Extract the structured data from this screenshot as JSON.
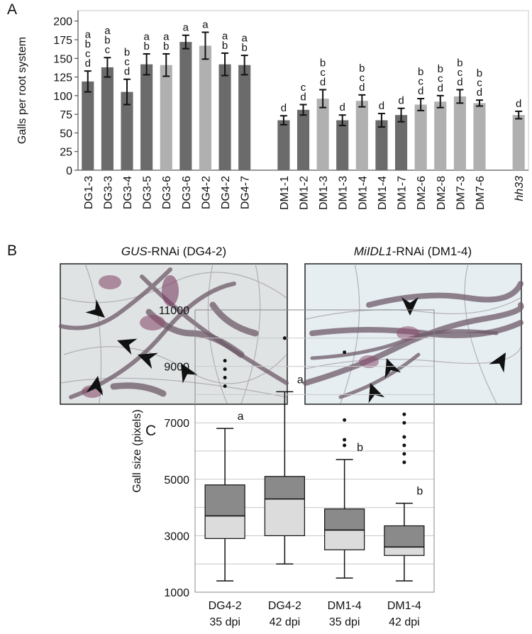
{
  "panel_labels": [
    "A",
    "B",
    "C"
  ],
  "chart_data": [
    {
      "type": "bar",
      "ylabel": "Galls per root system",
      "ylim": [
        0,
        214
      ],
      "yticks": [
        0,
        25,
        50,
        75,
        100,
        125,
        150,
        175,
        200
      ],
      "categories": [
        "DG1-3",
        "DG3-3",
        "DG3-4",
        "DG3-5",
        "DG3-6",
        "DG3-6",
        "DG4-2",
        "DG4-2",
        "DG4-7",
        null,
        "DM1-1",
        "DM1-2",
        "DM1-3",
        "DM1-3",
        "DM1-4",
        "DM1-4",
        "DM1-7",
        "DM2-6",
        "DM2-8",
        "DM7-3",
        "DM7-6",
        null,
        "hh33"
      ],
      "italic_index": 22,
      "values": [
        119,
        138,
        105,
        142,
        141,
        172,
        167,
        142,
        141,
        null,
        67,
        81,
        96,
        67,
        93,
        67,
        74,
        88,
        92,
        99,
        90,
        null,
        74
      ],
      "errors": [
        14,
        13,
        17,
        14,
        15,
        9,
        18,
        15,
        13,
        null,
        6,
        7,
        12,
        7,
        8,
        9,
        9,
        8,
        8,
        9,
        4,
        null,
        5
      ],
      "colors": [
        "#6b6b6b",
        "#6b6b6b",
        "#6b6b6b",
        "#6b6b6b",
        "#b0b0b0",
        "#6b6b6b",
        "#b0b0b0",
        "#6b6b6b",
        "#6b6b6b",
        null,
        "#6b6b6b",
        "#6b6b6b",
        "#b0b0b0",
        "#6b6b6b",
        "#b0b0b0",
        "#6b6b6b",
        "#6b6b6b",
        "#b0b0b0",
        "#b0b0b0",
        "#b0b0b0",
        "#b0b0b0",
        null,
        "#b0b0b0"
      ],
      "letters": [
        [
          "a",
          "b",
          "c",
          "d"
        ],
        [
          "a",
          "b",
          "c"
        ],
        [
          "b",
          "c",
          "d"
        ],
        [
          "a",
          "b"
        ],
        [
          "a",
          "b"
        ],
        [
          "a"
        ],
        [
          "a"
        ],
        [
          "a",
          "b"
        ],
        [
          "a",
          "b"
        ],
        null,
        [
          "d"
        ],
        [
          "c",
          "d"
        ],
        [
          "b",
          "c",
          "d"
        ],
        [
          "d"
        ],
        [
          "b",
          "c",
          "d"
        ],
        [
          "d"
        ],
        [
          "d"
        ],
        [
          "b",
          "c",
          "d"
        ],
        [
          "b",
          "c",
          "d"
        ],
        [
          "b",
          "c",
          "d"
        ],
        [
          "b",
          "c",
          "d"
        ],
        null,
        [
          "d"
        ]
      ]
    },
    {
      "type": "box",
      "ylabel": "Gall size (pixels)",
      "ylim": [
        1000,
        11000
      ],
      "yticks": [
        1000,
        3000,
        5000,
        7000,
        9000,
        11000
      ],
      "ygrid": [
        2000,
        4000,
        6000,
        8000,
        10000
      ],
      "upper_color": "#8a8a8a",
      "lower_color": "#dcdcdc",
      "categories": [
        [
          "DG4-2",
          "35 dpi"
        ],
        [
          "DG4-2",
          "42 dpi"
        ],
        [
          "DM1-4",
          "35 dpi"
        ],
        [
          "DM1-4",
          "42 dpi"
        ]
      ],
      "boxes": [
        {
          "low": 1400,
          "q1": 2900,
          "median": 3700,
          "q3": 4800,
          "high": 6800,
          "outliers": [
            9200,
            8900,
            8600,
            8300
          ],
          "letter": "a"
        },
        {
          "low": 2000,
          "q1": 3000,
          "median": 4300,
          "q3": 5100,
          "high": 8100,
          "outliers": [
            10000
          ],
          "letter": "a"
        },
        {
          "low": 1500,
          "q1": 2500,
          "median": 3200,
          "q3": 3950,
          "high": 5700,
          "outliers": [
            9500,
            7100,
            6400,
            6200
          ],
          "letter": "b"
        },
        {
          "low": 1400,
          "q1": 2300,
          "median": 2600,
          "q3": 3350,
          "high": 4150,
          "outliers": [
            7300,
            7000,
            6500,
            6200,
            5900,
            5600
          ],
          "letter": "b"
        }
      ]
    }
  ],
  "photos": [
    {
      "title": [
        "GUS",
        "-RNAi (DG4-2)"
      ]
    },
    {
      "title": [
        "MiIDL1",
        "-RNAi (DM1-4)"
      ]
    }
  ]
}
